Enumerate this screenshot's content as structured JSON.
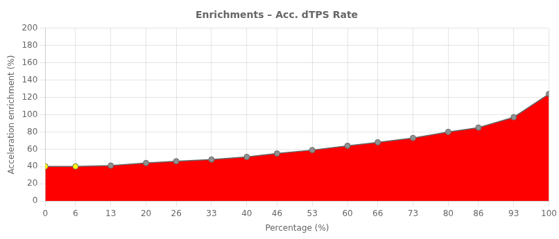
{
  "chart_data": {
    "type": "area",
    "title": "Enrichments – Acc. dTPS Rate",
    "x_label": "Percentage (%)",
    "y_label": "Acceleration enrichment (%)",
    "x": [
      0,
      6,
      13,
      20,
      26,
      33,
      40,
      46,
      53,
      60,
      66,
      73,
      80,
      86,
      93,
      100
    ],
    "values": [
      40,
      40,
      41,
      44,
      46,
      48,
      51,
      55,
      59,
      64,
      68,
      73,
      80,
      85,
      97,
      124
    ],
    "color": "#ff0000",
    "colors": [
      "#ffff00",
      "#ffff00",
      "#909090",
      "#909090",
      "#909090",
      "#909090",
      "#909090",
      "#909090",
      "#909090",
      "#909090",
      "#909090",
      "#909090",
      "#909090",
      "#909090",
      "#909090",
      "#909090"
    ],
    "marker": "circle",
    "xlim": [
      0,
      100
    ],
    "xticks": [
      0,
      6,
      13,
      20,
      26,
      33,
      40,
      46,
      53,
      60,
      66,
      73,
      80,
      86,
      93,
      100
    ],
    "ylim": [
      0,
      200
    ],
    "yticks": [
      0,
      20,
      40,
      60,
      80,
      100,
      120,
      140,
      160,
      180,
      200
    ],
    "grid": true
  }
}
